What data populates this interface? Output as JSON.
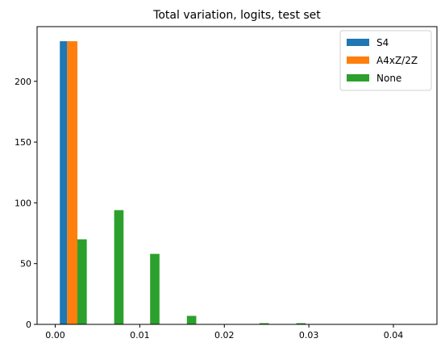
{
  "chart_data": {
    "type": "bar",
    "title": "Total variation, logits, test set",
    "xlabel": "",
    "ylabel": "",
    "xlim": [
      -0.00215,
      0.04515
    ],
    "ylim": [
      0,
      245
    ],
    "grid": false,
    "legend_position": "top-right",
    "xticks": [
      {
        "value": 0.0,
        "label": "0.00"
      },
      {
        "value": 0.01,
        "label": "0.01"
      },
      {
        "value": 0.02,
        "label": "0.02"
      },
      {
        "value": 0.03,
        "label": "0.03"
      },
      {
        "value": 0.04,
        "label": "0.04"
      }
    ],
    "yticks": [
      {
        "value": 0,
        "label": "0"
      },
      {
        "value": 50,
        "label": "50"
      },
      {
        "value": 100,
        "label": "100"
      },
      {
        "value": 150,
        "label": "150"
      },
      {
        "value": 200,
        "label": "200"
      }
    ],
    "series": [
      {
        "name": "S4",
        "color": "#1f77b4",
        "bars": [
          {
            "x0": 0.00054,
            "x1": 0.00141,
            "value": 233
          }
        ]
      },
      {
        "name": "A4xZ/2Z",
        "color": "#ff7f0e",
        "bars": [
          {
            "x0": 0.00141,
            "x1": 0.00262,
            "value": 233
          }
        ]
      },
      {
        "name": "None",
        "color": "#2ca02c",
        "bars": [
          {
            "x0": 0.00262,
            "x1": 0.00373,
            "value": 70
          },
          {
            "x0": 0.00697,
            "x1": 0.00808,
            "value": 94
          },
          {
            "x0": 0.01122,
            "x1": 0.01233,
            "value": 58
          },
          {
            "x0": 0.01557,
            "x1": 0.01668,
            "value": 7
          },
          {
            "x0": 0.02416,
            "x1": 0.02527,
            "value": 1
          },
          {
            "x0": 0.02851,
            "x1": 0.02962,
            "value": 1
          }
        ]
      }
    ]
  }
}
